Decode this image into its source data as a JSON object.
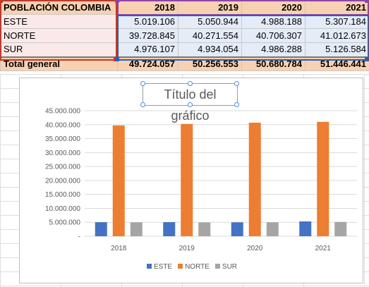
{
  "table": {
    "header": {
      "label": "POBLACIÓN COLOMBIA",
      "years": [
        "2018",
        "2019",
        "2020",
        "2021"
      ]
    },
    "rows": [
      {
        "label": "ESTE",
        "values": [
          "5.019.106",
          "5.050.944",
          "4.988.188",
          "5.307.184"
        ]
      },
      {
        "label": "NORTE",
        "values": [
          "39.728.845",
          "40.271.554",
          "40.706.307",
          "41.012.673"
        ]
      },
      {
        "label": "SUR",
        "values": [
          "4.976.107",
          "4.934.054",
          "4.986.288",
          "5.126.584"
        ]
      }
    ],
    "total": {
      "label": "Total general",
      "values": [
        "49.724.057",
        "50.256.553",
        "50.680.784",
        "51.446.441"
      ]
    }
  },
  "chart": {
    "title": "Título del gráfico"
  },
  "chart_data": {
    "type": "bar",
    "title": "Título del gráfico",
    "categories": [
      "2018",
      "2019",
      "2020",
      "2021"
    ],
    "series": [
      {
        "name": "ESTE",
        "color": "#4472c4",
        "values": [
          5019106,
          5050944,
          4988188,
          5307184
        ]
      },
      {
        "name": "NORTE",
        "color": "#ed7d31",
        "values": [
          39728845,
          40271554,
          40706307,
          41012673
        ]
      },
      {
        "name": "SUR",
        "color": "#a5a5a5",
        "values": [
          4976107,
          4934054,
          4986288,
          5126584
        ]
      }
    ],
    "ylim": [
      0,
      45000000
    ],
    "yticks": [
      0,
      5000000,
      10000000,
      15000000,
      20000000,
      25000000,
      30000000,
      35000000,
      40000000,
      45000000
    ],
    "ytick_labels": [
      "-",
      "5.000.000",
      "10.000.000",
      "15.000.000",
      "20.000.000",
      "25.000.000",
      "30.000.000",
      "35.000.000",
      "40.000.000",
      "45.000.000"
    ],
    "grid": true,
    "legend": "bottom"
  }
}
